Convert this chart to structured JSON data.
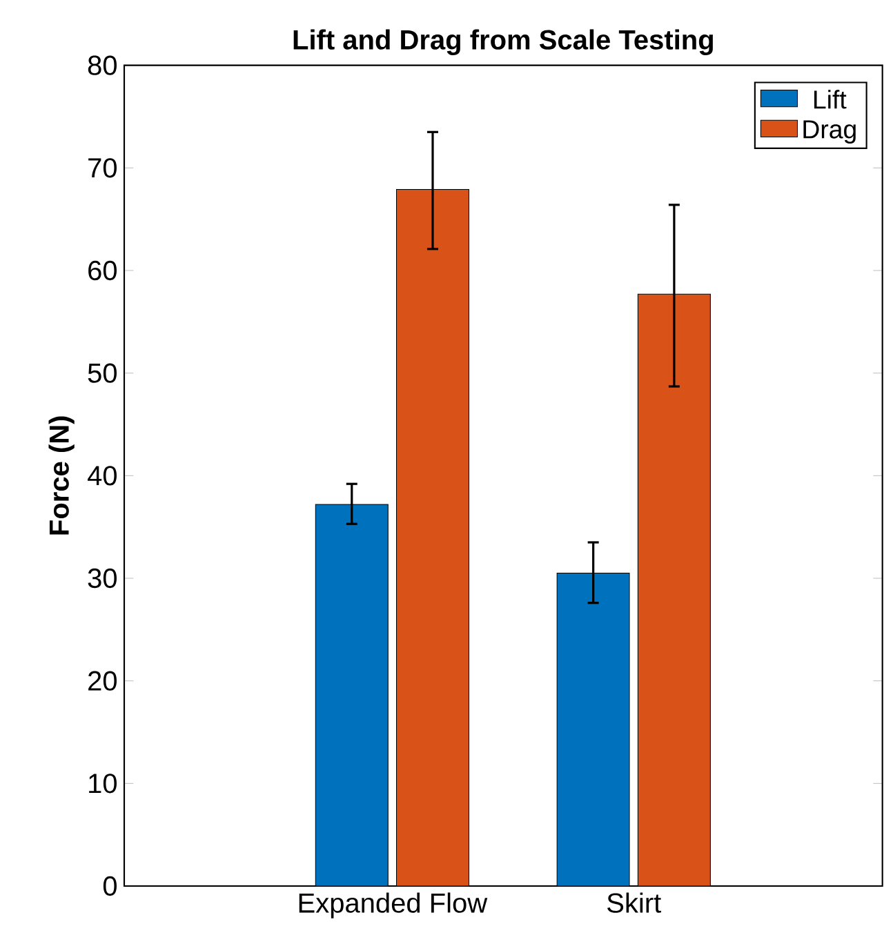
{
  "chart_data": {
    "type": "bar",
    "title": "Lift and Drag from Scale Testing",
    "ylabel": "Force (N)",
    "categories": [
      "Expanded Flow",
      "Skirt"
    ],
    "series": [
      {
        "name": "Lift",
        "color": "#0072bd",
        "values": [
          37.2,
          30.5
        ],
        "errors": [
          [
            35.3,
            39.2
          ],
          [
            27.6,
            33.5
          ]
        ]
      },
      {
        "name": "Drag",
        "color": "#d95319",
        "values": [
          67.9,
          57.7
        ],
        "errors": [
          [
            62.1,
            73.5
          ],
          [
            48.7,
            66.4
          ]
        ]
      }
    ],
    "ylim": [
      0,
      80
    ],
    "yticks": [
      0,
      10,
      20,
      30,
      40,
      50,
      60,
      70,
      80
    ],
    "grid": false,
    "legend": "top right"
  }
}
